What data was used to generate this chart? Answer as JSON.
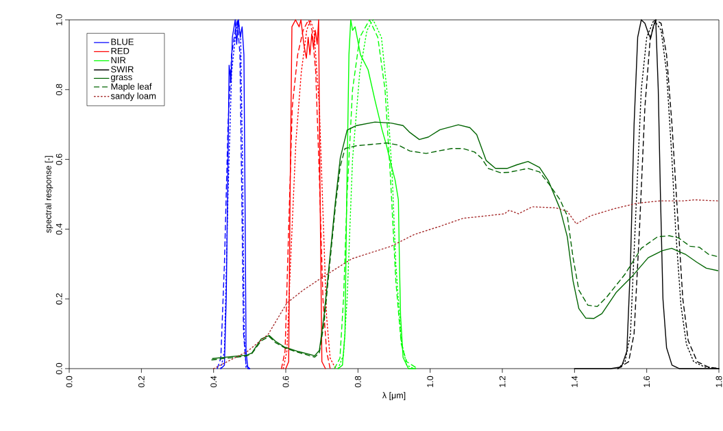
{
  "chart_data": {
    "type": "line",
    "xlabel": "λ [μm]",
    "ylabel": "spectral response [-]",
    "xlim": [
      0,
      1.8
    ],
    "ylim": [
      0,
      1.0
    ],
    "xticks": [
      {
        "value": 0,
        "label": "0.0"
      },
      {
        "value": 0.2,
        "label": "0.2"
      },
      {
        "value": 0.4,
        "label": "0.4"
      },
      {
        "value": 0.6,
        "label": "0.6"
      },
      {
        "value": 0.8,
        "label": "0.8"
      },
      {
        "value": 1.0,
        "label": "1.0"
      },
      {
        "value": 1.2,
        "label": "1.2"
      },
      {
        "value": 1.4,
        "label": "1.4"
      },
      {
        "value": 1.6,
        "label": "1.6"
      },
      {
        "value": 1.8,
        "label": "1.8"
      }
    ],
    "yticks": [
      {
        "value": 0,
        "label": "0.0"
      },
      {
        "value": 0.2,
        "label": "0.2"
      },
      {
        "value": 0.4,
        "label": "0.4"
      },
      {
        "value": 0.6,
        "label": "0.6"
      },
      {
        "value": 0.8,
        "label": "0.8"
      },
      {
        "value": 1.0,
        "label": "1.0"
      }
    ],
    "legend": "top left",
    "series": [
      {
        "name": "BLUE",
        "color": "#0000ff",
        "line_style": "solid",
        "x": [
          0.42,
          0.43,
          0.435,
          0.44,
          0.443,
          0.448,
          0.452,
          0.46,
          0.464,
          0.469,
          0.474,
          0.479,
          0.484,
          0.487,
          0.49,
          0.495,
          0.5
        ],
        "values": [
          0,
          0.01,
          0.2,
          0.6,
          0.87,
          0.82,
          0.95,
          1.0,
          0.93,
          1.0,
          0.95,
          0.98,
          0.9,
          0.5,
          0.05,
          0,
          0
        ]
      },
      {
        "color": "#0000ff",
        "line_style": "dashed",
        "x": [
          0.41,
          0.42,
          0.43,
          0.44,
          0.45,
          0.46,
          0.466,
          0.473,
          0.478,
          0.483,
          0.49,
          0.5
        ],
        "values": [
          0,
          0.03,
          0.3,
          0.7,
          0.9,
          0.97,
          1.0,
          0.9,
          0.5,
          0.1,
          0.01,
          0
        ]
      },
      {
        "color": "#0000ff",
        "line_style": "dotted",
        "x": [
          0.42,
          0.43,
          0.44,
          0.45,
          0.46,
          0.468,
          0.475,
          0.48,
          0.485,
          0.49
        ],
        "values": [
          0,
          0.05,
          0.5,
          0.85,
          0.95,
          1.0,
          0.95,
          0.6,
          0.1,
          0
        ]
      },
      {
        "name": "RED",
        "color": "#ff0000",
        "line_style": "solid",
        "x": [
          0.6,
          0.608,
          0.612,
          0.617,
          0.627,
          0.637,
          0.642,
          0.65,
          0.657,
          0.662,
          0.667,
          0.672,
          0.677,
          0.682,
          0.687,
          0.691,
          0.695,
          0.7,
          0.71
        ],
        "values": [
          0,
          0.02,
          0.5,
          0.98,
          1.0,
          0.98,
          1.0,
          0.93,
          0.89,
          0.95,
          0.9,
          0.96,
          0.92,
          0.97,
          0.93,
          1.0,
          0.5,
          0.02,
          0
        ]
      },
      {
        "color": "#ff0000",
        "line_style": "dashed",
        "x": [
          0.588,
          0.598,
          0.608,
          0.618,
          0.633,
          0.648,
          0.663,
          0.673,
          0.683,
          0.693,
          0.703,
          0.713,
          0.723
        ],
        "values": [
          0,
          0.05,
          0.4,
          0.75,
          0.9,
          0.97,
          1.0,
          0.97,
          0.85,
          0.55,
          0.2,
          0.05,
          0
        ]
      },
      {
        "color": "#ff0000",
        "line_style": "dotted",
        "x": [
          0.593,
          0.603,
          0.613,
          0.628,
          0.643,
          0.658,
          0.668,
          0.678,
          0.693,
          0.703,
          0.713,
          0.723,
          0.738
        ],
        "values": [
          0,
          0.05,
          0.3,
          0.65,
          0.85,
          0.97,
          1.0,
          0.97,
          0.75,
          0.45,
          0.15,
          0.03,
          0
        ]
      },
      {
        "name": "NIR",
        "color": "#00ff00",
        "line_style": "solid",
        "x": [
          0.745,
          0.757,
          0.764,
          0.769,
          0.775,
          0.78,
          0.785,
          0.792,
          0.807,
          0.828,
          0.847,
          0.867,
          0.879,
          0.892,
          0.903,
          0.912,
          0.915,
          0.918,
          0.925,
          0.94,
          0.96
        ],
        "values": [
          0,
          0.01,
          0.1,
          0.5,
          0.9,
          1.0,
          0.97,
          0.98,
          0.9,
          0.857,
          0.77,
          0.684,
          0.64,
          0.584,
          0.54,
          0.484,
          0.3,
          0.152,
          0.032,
          0,
          0
        ]
      },
      {
        "color": "#00ff00",
        "line_style": "dashed",
        "x": [
          0.735,
          0.75,
          0.76,
          0.77,
          0.785,
          0.805,
          0.832,
          0.855,
          0.875,
          0.89,
          0.905,
          0.92,
          0.935,
          0.965
        ],
        "values": [
          0,
          0.03,
          0.2,
          0.5,
          0.8,
          0.95,
          1.0,
          0.95,
          0.8,
          0.55,
          0.25,
          0.07,
          0.02,
          0
        ]
      },
      {
        "color": "#00ff00",
        "line_style": "dotted",
        "x": [
          0.745,
          0.76,
          0.77,
          0.785,
          0.805,
          0.825,
          0.842,
          0.865,
          0.88,
          0.895,
          0.905,
          0.92,
          0.935,
          0.955
        ],
        "values": [
          0,
          0.04,
          0.2,
          0.6,
          0.85,
          0.97,
          1.0,
          0.95,
          0.8,
          0.55,
          0.3,
          0.08,
          0.01,
          0
        ]
      },
      {
        "name": "SWIR",
        "color": "#000000",
        "line_style": "solid",
        "x": [
          1.4,
          1.5,
          1.53,
          1.545,
          1.555,
          1.565,
          1.575,
          1.585,
          1.595,
          1.605,
          1.611,
          1.618,
          1.625,
          1.632,
          1.638,
          1.645,
          1.655,
          1.67,
          1.69,
          1.8
        ],
        "values": [
          0,
          0,
          0.005,
          0.05,
          0.3,
          0.7,
          0.95,
          1.0,
          0.99,
          0.96,
          0.947,
          0.98,
          1.0,
          0.8,
          0.5,
          0.2,
          0.06,
          0.01,
          0,
          0
        ]
      },
      {
        "color": "#000000",
        "line_style": "dashed",
        "x": [
          1.52,
          1.55,
          1.565,
          1.58,
          1.595,
          1.61,
          1.625,
          1.64,
          1.655,
          1.67,
          1.685,
          1.7,
          1.715,
          1.74,
          1.77,
          1.8
        ],
        "values": [
          0,
          0.02,
          0.1,
          0.4,
          0.75,
          0.95,
          1.0,
          0.99,
          0.9,
          0.7,
          0.45,
          0.2,
          0.08,
          0.02,
          0.005,
          0
        ]
      },
      {
        "color": "#000000",
        "line_style": "dotted",
        "x": [
          1.52,
          1.54,
          1.555,
          1.57,
          1.585,
          1.6,
          1.62,
          1.64,
          1.655,
          1.67,
          1.68,
          1.695,
          1.71,
          1.73,
          1.76,
          1.8
        ],
        "values": [
          0,
          0.02,
          0.1,
          0.45,
          0.8,
          0.95,
          1.0,
          0.97,
          0.85,
          0.6,
          0.4,
          0.18,
          0.07,
          0.02,
          0.005,
          0
        ]
      },
      {
        "name": "grass",
        "color": "#006400",
        "line_style": "solid",
        "x": [
          0.397,
          0.493,
          0.506,
          0.532,
          0.554,
          0.571,
          0.596,
          0.635,
          0.68,
          0.693,
          0.706,
          0.719,
          0.738,
          0.751,
          0.77,
          0.796,
          0.847,
          0.892,
          0.925,
          0.944,
          0.97,
          0.995,
          1.027,
          1.078,
          1.11,
          1.129,
          1.155,
          1.181,
          1.213,
          1.239,
          1.271,
          1.303,
          1.328,
          1.36,
          1.38,
          1.396,
          1.412,
          1.431,
          1.454,
          1.476,
          1.515,
          1.56,
          1.604,
          1.643,
          1.669,
          1.707,
          1.739,
          1.765,
          1.797
        ],
        "values": [
          0.029,
          0.039,
          0.045,
          0.085,
          0.095,
          0.079,
          0.062,
          0.049,
          0.037,
          0.052,
          0.152,
          0.285,
          0.484,
          0.604,
          0.684,
          0.697,
          0.707,
          0.704,
          0.697,
          0.677,
          0.657,
          0.664,
          0.685,
          0.699,
          0.691,
          0.671,
          0.597,
          0.574,
          0.574,
          0.584,
          0.594,
          0.577,
          0.538,
          0.458,
          0.378,
          0.251,
          0.172,
          0.145,
          0.144,
          0.158,
          0.218,
          0.265,
          0.318,
          0.338,
          0.345,
          0.328,
          0.305,
          0.288,
          0.281
        ]
      },
      {
        "name": "Maple leaf",
        "color": "#006400",
        "line_style": "dashed",
        "x": [
          0.395,
          0.49,
          0.506,
          0.532,
          0.554,
          0.571,
          0.6,
          0.64,
          0.68,
          0.693,
          0.706,
          0.719,
          0.738,
          0.751,
          0.764,
          0.796,
          0.88,
          0.912,
          0.944,
          0.989,
          1.027,
          1.059,
          1.091,
          1.123,
          1.142,
          1.161,
          1.194,
          1.219,
          1.271,
          1.303,
          1.328,
          1.36,
          1.38,
          1.396,
          1.412,
          1.437,
          1.463,
          1.489,
          1.54,
          1.585,
          1.63,
          1.662,
          1.688,
          1.72,
          1.746,
          1.771,
          1.797
        ],
        "values": [
          0.025,
          0.036,
          0.043,
          0.08,
          0.092,
          0.075,
          0.058,
          0.045,
          0.033,
          0.045,
          0.13,
          0.27,
          0.47,
          0.58,
          0.631,
          0.639,
          0.647,
          0.641,
          0.624,
          0.617,
          0.625,
          0.631,
          0.631,
          0.621,
          0.604,
          0.574,
          0.562,
          0.563,
          0.574,
          0.564,
          0.531,
          0.484,
          0.438,
          0.318,
          0.225,
          0.182,
          0.178,
          0.205,
          0.271,
          0.345,
          0.378,
          0.381,
          0.375,
          0.351,
          0.348,
          0.328,
          0.321
        ]
      },
      {
        "name": "sandy loam",
        "color": "#a52a2a",
        "line_style": "dotted",
        "x": [
          0.4,
          0.493,
          0.551,
          0.603,
          0.648,
          0.706,
          0.783,
          0.892,
          0.957,
          1.027,
          1.091,
          1.155,
          1.206,
          1.219,
          1.245,
          1.283,
          1.348,
          1.38,
          1.405,
          1.444,
          1.508,
          1.572,
          1.637,
          1.701,
          1.733,
          1.797
        ],
        "values": [
          0,
          0.049,
          0.098,
          0.188,
          0.225,
          0.265,
          0.315,
          0.351,
          0.385,
          0.408,
          0.431,
          0.438,
          0.444,
          0.454,
          0.444,
          0.464,
          0.461,
          0.451,
          0.415,
          0.438,
          0.458,
          0.474,
          0.481,
          0.481,
          0.484,
          0.481
        ]
      }
    ]
  }
}
